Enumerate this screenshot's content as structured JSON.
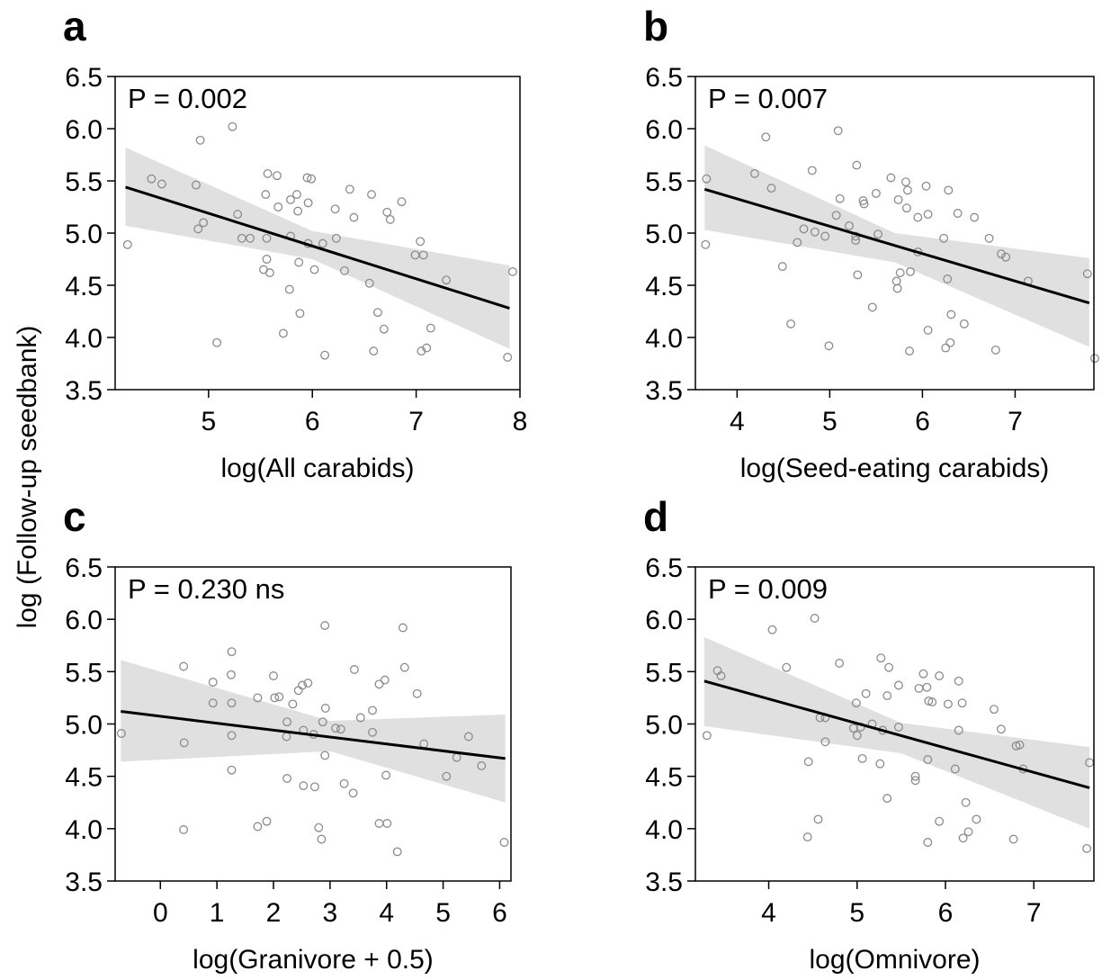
{
  "ylabel": "log (Follow-up seedbank)",
  "chart_data": [
    {
      "type": "scatter",
      "panel": "a",
      "annotation": "P = 0.002",
      "xlabel": "log(All carabids)",
      "ylabel": "log (Follow-up seedbank)",
      "xlim": [
        4.1,
        8.0
      ],
      "ylim": [
        3.5,
        6.5
      ],
      "xticks": [
        5,
        6,
        7,
        8
      ],
      "yticks": [
        3.5,
        4.0,
        4.5,
        5.0,
        5.5,
        6.0,
        6.5
      ],
      "fit": {
        "x": [
          4.2,
          7.9
        ],
        "y": [
          5.44,
          4.28
        ]
      },
      "ci_upper": [
        [
          4.2,
          5.82
        ],
        [
          6.0,
          5.02
        ],
        [
          7.9,
          4.69
        ]
      ],
      "ci_lower": [
        [
          4.2,
          5.07
        ],
        [
          6.0,
          4.75
        ],
        [
          7.9,
          3.89
        ]
      ],
      "points": [
        [
          4.22,
          4.89
        ],
        [
          4.45,
          5.52
        ],
        [
          4.55,
          5.47
        ],
        [
          4.88,
          5.46
        ],
        [
          4.92,
          5.89
        ],
        [
          4.9,
          5.04
        ],
        [
          4.95,
          5.1
        ],
        [
          5.08,
          3.95
        ],
        [
          5.23,
          6.02
        ],
        [
          5.28,
          5.18
        ],
        [
          5.32,
          4.95
        ],
        [
          5.4,
          4.95
        ],
        [
          5.53,
          4.65
        ],
        [
          5.55,
          5.37
        ],
        [
          5.56,
          4.95
        ],
        [
          5.56,
          4.75
        ],
        [
          5.57,
          5.57
        ],
        [
          5.59,
          4.62
        ],
        [
          5.66,
          5.55
        ],
        [
          5.67,
          5.25
        ],
        [
          5.72,
          4.04
        ],
        [
          5.78,
          4.46
        ],
        [
          5.79,
          5.32
        ],
        [
          5.79,
          4.97
        ],
        [
          5.85,
          5.37
        ],
        [
          5.86,
          5.21
        ],
        [
          5.87,
          4.72
        ],
        [
          5.88,
          4.23
        ],
        [
          5.95,
          5.53
        ],
        [
          5.96,
          5.29
        ],
        [
          5.96,
          4.9
        ],
        [
          5.99,
          5.52
        ],
        [
          6.02,
          4.65
        ],
        [
          6.1,
          4.9
        ],
        [
          6.12,
          3.83
        ],
        [
          6.22,
          5.23
        ],
        [
          6.23,
          4.95
        ],
        [
          6.31,
          4.64
        ],
        [
          6.36,
          5.42
        ],
        [
          6.4,
          5.15
        ],
        [
          6.55,
          4.52
        ],
        [
          6.57,
          5.37
        ],
        [
          6.59,
          3.87
        ],
        [
          6.63,
          4.24
        ],
        [
          6.69,
          4.08
        ],
        [
          6.72,
          5.2
        ],
        [
          6.75,
          5.13
        ],
        [
          6.86,
          5.3
        ],
        [
          6.99,
          4.79
        ],
        [
          7.04,
          4.92
        ],
        [
          7.05,
          3.87
        ],
        [
          7.07,
          4.79
        ],
        [
          7.1,
          3.9
        ],
        [
          7.14,
          4.09
        ],
        [
          7.29,
          4.55
        ],
        [
          7.88,
          3.81
        ],
        [
          7.93,
          4.63
        ]
      ]
    },
    {
      "type": "scatter",
      "panel": "b",
      "annotation": "P = 0.007",
      "xlabel": "log(Seed-eating carabids)",
      "ylabel": "log (Follow-up seedbank)",
      "xlim": [
        3.55,
        7.85
      ],
      "ylim": [
        3.5,
        6.5
      ],
      "xticks": [
        4,
        5,
        6,
        7
      ],
      "yticks": [
        3.5,
        4.0,
        4.5,
        5.0,
        5.5,
        6.0,
        6.5
      ],
      "fit": {
        "x": [
          3.65,
          7.8
        ],
        "y": [
          5.42,
          4.33
        ]
      },
      "ci_upper": [
        [
          3.65,
          5.84
        ],
        [
          5.7,
          5.0
        ],
        [
          7.8,
          4.76
        ]
      ],
      "ci_lower": [
        [
          3.65,
          5.03
        ],
        [
          5.7,
          4.72
        ],
        [
          7.8,
          3.91
        ]
      ],
      "points": [
        [
          3.66,
          4.89
        ],
        [
          3.67,
          5.52
        ],
        [
          4.19,
          5.57
        ],
        [
          4.31,
          5.92
        ],
        [
          4.37,
          5.43
        ],
        [
          4.49,
          4.68
        ],
        [
          4.58,
          4.13
        ],
        [
          4.65,
          4.91
        ],
        [
          4.72,
          5.04
        ],
        [
          4.81,
          5.6
        ],
        [
          4.84,
          5.01
        ],
        [
          4.95,
          4.97
        ],
        [
          4.99,
          3.92
        ],
        [
          5.07,
          5.17
        ],
        [
          5.09,
          5.98
        ],
        [
          5.11,
          5.33
        ],
        [
          5.21,
          5.07
        ],
        [
          5.28,
          4.97
        ],
        [
          5.28,
          4.93
        ],
        [
          5.29,
          5.65
        ],
        [
          5.3,
          4.6
        ],
        [
          5.36,
          5.31
        ],
        [
          5.37,
          5.28
        ],
        [
          5.46,
          4.29
        ],
        [
          5.5,
          5.38
        ],
        [
          5.52,
          4.99
        ],
        [
          5.66,
          5.53
        ],
        [
          5.72,
          4.54
        ],
        [
          5.73,
          4.47
        ],
        [
          5.74,
          5.32
        ],
        [
          5.76,
          4.62
        ],
        [
          5.82,
          5.49
        ],
        [
          5.83,
          5.24
        ],
        [
          5.84,
          5.41
        ],
        [
          5.86,
          3.87
        ],
        [
          5.87,
          4.63
        ],
        [
          5.95,
          5.15
        ],
        [
          5.95,
          4.82
        ],
        [
          6.04,
          5.45
        ],
        [
          6.06,
          5.18
        ],
        [
          6.06,
          4.07
        ],
        [
          6.23,
          4.95
        ],
        [
          6.25,
          3.9
        ],
        [
          6.27,
          4.56
        ],
        [
          6.28,
          5.41
        ],
        [
          6.3,
          3.95
        ],
        [
          6.31,
          4.22
        ],
        [
          6.38,
          5.19
        ],
        [
          6.45,
          4.13
        ],
        [
          6.56,
          5.15
        ],
        [
          6.72,
          4.95
        ],
        [
          6.79,
          3.88
        ],
        [
          6.85,
          4.8
        ],
        [
          6.9,
          4.77
        ],
        [
          7.14,
          4.54
        ],
        [
          7.78,
          4.61
        ],
        [
          7.86,
          3.8
        ]
      ]
    },
    {
      "type": "scatter",
      "panel": "c",
      "annotation": "P = 0.230 ns",
      "xlabel": "log(Granivore + 0.5)",
      "ylabel": "log (Follow-up seedbank)",
      "xlim": [
        -0.8,
        6.2
      ],
      "ylim": [
        3.5,
        6.5
      ],
      "xticks": [
        0,
        1,
        2,
        3,
        4,
        5,
        6
      ],
      "yticks": [
        3.5,
        4.0,
        4.5,
        5.0,
        5.5,
        6.0,
        6.5
      ],
      "fit": {
        "x": [
          -0.7,
          6.1
        ],
        "y": [
          5.12,
          4.67
        ]
      },
      "ci_upper": [
        [
          -0.7,
          5.61
        ],
        [
          3.0,
          5.03
        ],
        [
          6.1,
          5.09
        ]
      ],
      "ci_lower": [
        [
          -0.7,
          4.64
        ],
        [
          3.0,
          4.74
        ],
        [
          6.1,
          4.25
        ]
      ],
      "points": [
        [
          -0.69,
          4.91
        ],
        [
          0.41,
          5.55
        ],
        [
          0.42,
          4.82
        ],
        [
          0.41,
          3.99
        ],
        [
          0.93,
          5.2
        ],
        [
          0.93,
          5.4
        ],
        [
          1.26,
          5.69
        ],
        [
          1.25,
          5.47
        ],
        [
          1.26,
          5.2
        ],
        [
          1.26,
          4.89
        ],
        [
          1.26,
          4.56
        ],
        [
          1.72,
          5.25
        ],
        [
          1.72,
          4.02
        ],
        [
          1.88,
          4.07
        ],
        [
          2.0,
          5.46
        ],
        [
          2.02,
          5.25
        ],
        [
          2.1,
          5.26
        ],
        [
          2.24,
          5.02
        ],
        [
          2.23,
          4.88
        ],
        [
          2.24,
          4.48
        ],
        [
          2.34,
          5.19
        ],
        [
          2.44,
          5.32
        ],
        [
          2.51,
          5.37
        ],
        [
          2.53,
          4.94
        ],
        [
          2.53,
          4.41
        ],
        [
          2.61,
          5.39
        ],
        [
          2.71,
          4.9
        ],
        [
          2.73,
          4.4
        ],
        [
          2.8,
          4.01
        ],
        [
          2.85,
          3.9
        ],
        [
          2.87,
          5.02
        ],
        [
          2.91,
          5.94
        ],
        [
          2.92,
          5.15
        ],
        [
          2.91,
          4.7
        ],
        [
          3.1,
          4.96
        ],
        [
          3.19,
          4.95
        ],
        [
          3.25,
          4.43
        ],
        [
          3.41,
          4.34
        ],
        [
          3.43,
          5.52
        ],
        [
          3.54,
          5.06
        ],
        [
          3.75,
          5.13
        ],
        [
          3.75,
          4.92
        ],
        [
          3.87,
          5.38
        ],
        [
          3.87,
          4.05
        ],
        [
          3.97,
          5.42
        ],
        [
          3.99,
          4.51
        ],
        [
          4.01,
          4.05
        ],
        [
          4.19,
          3.78
        ],
        [
          4.29,
          5.92
        ],
        [
          4.32,
          5.54
        ],
        [
          4.54,
          5.29
        ],
        [
          4.66,
          4.81
        ],
        [
          5.06,
          4.5
        ],
        [
          5.24,
          4.68
        ],
        [
          5.45,
          4.88
        ],
        [
          5.68,
          4.6
        ],
        [
          6.08,
          3.87
        ]
      ]
    },
    {
      "type": "scatter",
      "panel": "d",
      "annotation": "P = 0.009",
      "xlabel": "log(Omnivore)",
      "ylabel": "log (Follow-up seedbank)",
      "xlim": [
        3.17,
        7.68
      ],
      "ylim": [
        3.5,
        6.5
      ],
      "xticks": [
        4,
        5,
        6,
        7
      ],
      "yticks": [
        3.5,
        4.0,
        4.5,
        5.0,
        5.5,
        6.0,
        6.5
      ],
      "fit": {
        "x": [
          3.27,
          7.63
        ],
        "y": [
          5.41,
          4.39
        ]
      },
      "ci_upper": [
        [
          3.27,
          5.83
        ],
        [
          5.5,
          5.01
        ],
        [
          7.63,
          4.78
        ]
      ],
      "ci_lower": [
        [
          3.27,
          4.98
        ],
        [
          5.5,
          4.72
        ],
        [
          7.63,
          4.0
        ]
      ],
      "points": [
        [
          3.3,
          4.89
        ],
        [
          3.42,
          5.51
        ],
        [
          3.46,
          5.46
        ],
        [
          4.04,
          5.9
        ],
        [
          4.2,
          5.54
        ],
        [
          4.45,
          4.64
        ],
        [
          4.44,
          3.92
        ],
        [
          4.52,
          6.01
        ],
        [
          4.56,
          4.09
        ],
        [
          4.58,
          5.06
        ],
        [
          4.64,
          5.06
        ],
        [
          4.64,
          4.83
        ],
        [
          4.8,
          5.58
        ],
        [
          4.96,
          4.96
        ],
        [
          4.99,
          5.2
        ],
        [
          5.0,
          4.89
        ],
        [
          5.04,
          4.97
        ],
        [
          5.06,
          4.67
        ],
        [
          5.1,
          5.29
        ],
        [
          5.17,
          5.0
        ],
        [
          5.26,
          4.62
        ],
        [
          5.27,
          5.63
        ],
        [
          5.29,
          4.94
        ],
        [
          5.34,
          5.27
        ],
        [
          5.34,
          4.29
        ],
        [
          5.36,
          5.54
        ],
        [
          5.47,
          5.37
        ],
        [
          5.47,
          4.97
        ],
        [
          5.66,
          4.5
        ],
        [
          5.66,
          4.46
        ],
        [
          5.7,
          5.34
        ],
        [
          5.75,
          5.48
        ],
        [
          5.79,
          5.35
        ],
        [
          5.8,
          4.66
        ],
        [
          5.8,
          3.87
        ],
        [
          5.81,
          5.22
        ],
        [
          5.85,
          5.21
        ],
        [
          5.93,
          5.46
        ],
        [
          5.93,
          4.07
        ],
        [
          6.03,
          5.19
        ],
        [
          6.11,
          4.57
        ],
        [
          6.15,
          4.94
        ],
        [
          6.15,
          5.41
        ],
        [
          6.19,
          5.2
        ],
        [
          6.2,
          3.91
        ],
        [
          6.23,
          4.25
        ],
        [
          6.26,
          3.97
        ],
        [
          6.35,
          4.09
        ],
        [
          6.55,
          5.14
        ],
        [
          6.63,
          4.95
        ],
        [
          6.77,
          3.9
        ],
        [
          6.8,
          4.79
        ],
        [
          6.84,
          4.8
        ],
        [
          6.88,
          4.57
        ],
        [
          7.6,
          3.81
        ],
        [
          7.63,
          4.63
        ]
      ]
    }
  ]
}
